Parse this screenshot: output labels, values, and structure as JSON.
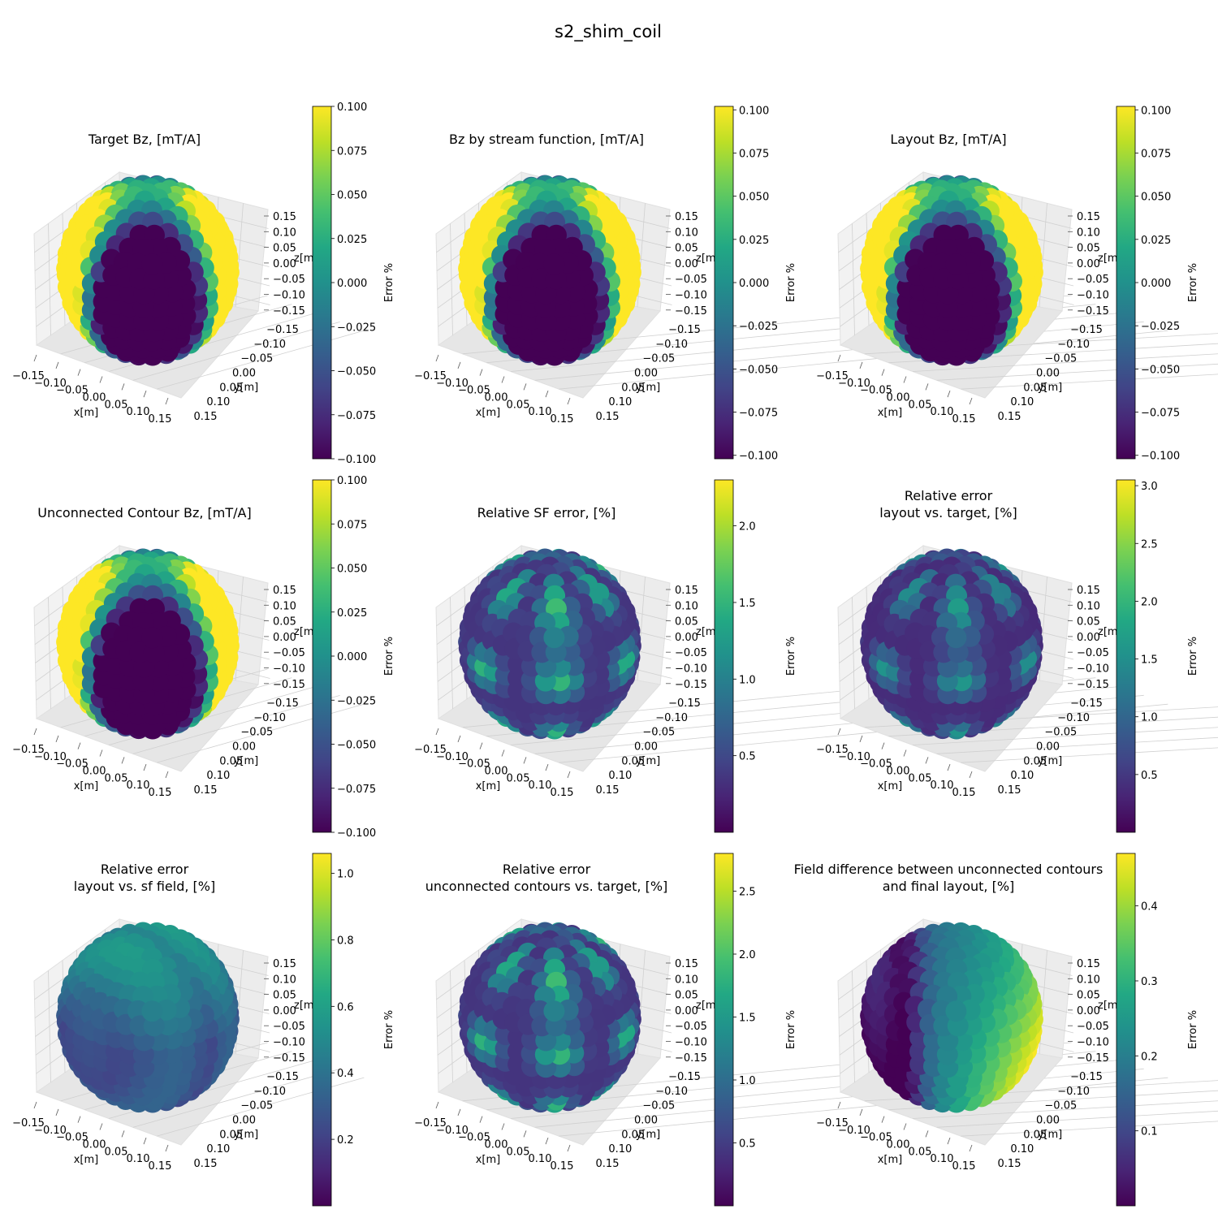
{
  "figure": {
    "suptitle": "s2_shim_coil"
  },
  "colors": {
    "colormap": "viridis",
    "pane": "#f2f2f2",
    "grid": "#d0d0d0"
  },
  "chart_data": [
    {
      "type": "scatter",
      "title_lines": [
        "Target Bz, [mT/A]"
      ],
      "xlabel": "x[m]",
      "ylabel": "y[m]",
      "zlabel": "z[m]",
      "xlim": [
        -0.15,
        0.15
      ],
      "ylim": [
        -0.15,
        0.15
      ],
      "zlim": [
        -0.15,
        0.15
      ],
      "x_ticks": [
        "−0.15",
        "−0.10",
        "−0.05",
        "0.00",
        "0.05",
        "0.10",
        "0.15"
      ],
      "y_ticks": [
        "−0.15",
        "−0.10",
        "−0.05",
        "0.00",
        "0.05",
        "0.10",
        "0.15"
      ],
      "z_ticks": [
        "0.15",
        "0.10",
        "0.05",
        "0.00",
        "−0.05",
        "−0.10",
        "−0.15"
      ],
      "colorbar": {
        "label": "Error %",
        "min": -0.1,
        "max": 0.1,
        "ticks": [
          "0.100",
          "0.075",
          "0.050",
          "0.025",
          "0.000",
          "−0.025",
          "−0.050",
          "−0.075",
          "−0.100"
        ],
        "tick_values": [
          0.1,
          0.075,
          0.05,
          0.025,
          0.0,
          -0.025,
          -0.05,
          -0.075,
          -0.1
        ]
      },
      "field": "bz"
    },
    {
      "type": "scatter",
      "title_lines": [
        "Bz by stream function, [mT/A]"
      ],
      "xlabel": "x[m]",
      "ylabel": "y[m]",
      "zlabel": "z[m]",
      "xlim": [
        -0.15,
        0.15
      ],
      "ylim": [
        -0.15,
        0.15
      ],
      "zlim": [
        -0.15,
        0.15
      ],
      "x_ticks": [
        "−0.15",
        "−0.10",
        "−0.05",
        "0.00",
        "0.05",
        "0.10",
        "0.15"
      ],
      "y_ticks": [
        "−0.15",
        "−0.10",
        "−0.05",
        "0.00",
        "0.05",
        "0.10",
        "0.15"
      ],
      "z_ticks": [
        "0.15",
        "0.10",
        "0.05",
        "0.00",
        "−0.05",
        "−0.10",
        "−0.15"
      ],
      "colorbar": {
        "label": "Error %",
        "min": -0.102,
        "max": 0.102,
        "ticks": [
          "0.100",
          "0.075",
          "0.050",
          "0.025",
          "0.000",
          "−0.025",
          "−0.050",
          "−0.075",
          "−0.100"
        ],
        "tick_values": [
          0.1,
          0.075,
          0.05,
          0.025,
          0.0,
          -0.025,
          -0.05,
          -0.075,
          -0.1
        ]
      },
      "field": "bz"
    },
    {
      "type": "scatter",
      "title_lines": [
        "Layout Bz, [mT/A]"
      ],
      "xlabel": "x[m]",
      "ylabel": "y[m]",
      "zlabel": "z[m]",
      "xlim": [
        -0.15,
        0.15
      ],
      "ylim": [
        -0.15,
        0.15
      ],
      "zlim": [
        -0.15,
        0.15
      ],
      "x_ticks": [
        "−0.15",
        "−0.10",
        "−0.05",
        "0.00",
        "0.05",
        "0.10",
        "0.15"
      ],
      "y_ticks": [
        "−0.15",
        "−0.10",
        "−0.05",
        "0.00",
        "0.05",
        "0.10",
        "0.15"
      ],
      "z_ticks": [
        "0.15",
        "0.10",
        "0.05",
        "0.00",
        "−0.05",
        "−0.10",
        "−0.15"
      ],
      "colorbar": {
        "label": "Error %",
        "min": -0.102,
        "max": 0.102,
        "ticks": [
          "0.100",
          "0.075",
          "0.050",
          "0.025",
          "0.000",
          "−0.025",
          "−0.050",
          "−0.075",
          "−0.100"
        ],
        "tick_values": [
          0.1,
          0.075,
          0.05,
          0.025,
          0.0,
          -0.025,
          -0.05,
          -0.075,
          -0.1
        ]
      },
      "field": "bz"
    },
    {
      "type": "scatter",
      "title_lines": [
        "Unconnected Contour Bz, [mT/A]"
      ],
      "xlabel": "x[m]",
      "ylabel": "y[m]",
      "zlabel": "z[m]",
      "xlim": [
        -0.15,
        0.15
      ],
      "ylim": [
        -0.15,
        0.15
      ],
      "zlim": [
        -0.15,
        0.15
      ],
      "x_ticks": [
        "−0.15",
        "−0.10",
        "−0.05",
        "0.00",
        "0.05",
        "0.10",
        "0.15"
      ],
      "y_ticks": [
        "−0.15",
        "−0.10",
        "−0.05",
        "0.00",
        "0.05",
        "0.10",
        "0.15"
      ],
      "z_ticks": [
        "0.15",
        "0.10",
        "0.05",
        "0.00",
        "−0.05",
        "−0.10",
        "−0.15"
      ],
      "colorbar": {
        "label": "Error %",
        "min": -0.1,
        "max": 0.1,
        "ticks": [
          "0.100",
          "0.075",
          "0.050",
          "0.025",
          "0.000",
          "−0.025",
          "−0.050",
          "−0.075",
          "−0.100"
        ],
        "tick_values": [
          0.1,
          0.075,
          0.05,
          0.025,
          0.0,
          -0.025,
          -0.05,
          -0.075,
          -0.1
        ]
      },
      "field": "bz"
    },
    {
      "type": "scatter",
      "title_lines": [
        "Relative SF error, [%]"
      ],
      "xlabel": "x[m]",
      "ylabel": "y[m]",
      "zlabel": "z[m]",
      "xlim": [
        -0.15,
        0.15
      ],
      "ylim": [
        -0.15,
        0.15
      ],
      "zlim": [
        -0.15,
        0.15
      ],
      "x_ticks": [
        "−0.15",
        "−0.10",
        "−0.05",
        "0.00",
        "0.05",
        "0.10",
        "0.15"
      ],
      "y_ticks": [
        "−0.15",
        "−0.10",
        "−0.05",
        "0.00",
        "0.05",
        "0.10",
        "0.15"
      ],
      "z_ticks": [
        "0.15",
        "0.10",
        "0.05",
        "0.00",
        "−0.05",
        "−0.10",
        "−0.15"
      ],
      "colorbar": {
        "label": "Error %",
        "min": 0.0,
        "max": 2.3,
        "ticks": [
          "2.0",
          "1.5",
          "1.0",
          "0.5"
        ],
        "tick_values": [
          2.0,
          1.5,
          1.0,
          0.5
        ]
      },
      "field": "err_pattern"
    },
    {
      "type": "scatter",
      "title_lines": [
        "Relative error",
        "layout vs. target, [%]"
      ],
      "xlabel": "x[m]",
      "ylabel": "y[m]",
      "zlabel": "z[m]",
      "xlim": [
        -0.15,
        0.15
      ],
      "ylim": [
        -0.15,
        0.15
      ],
      "zlim": [
        -0.15,
        0.15
      ],
      "x_ticks": [
        "−0.15",
        "−0.10",
        "−0.05",
        "0.00",
        "0.05",
        "0.10",
        "0.15"
      ],
      "y_ticks": [
        "−0.15",
        "−0.10",
        "−0.05",
        "0.00",
        "0.05",
        "0.10",
        "0.15"
      ],
      "z_ticks": [
        "0.15",
        "0.10",
        "0.05",
        "0.00",
        "−0.05",
        "−0.10",
        "−0.15"
      ],
      "colorbar": {
        "label": "Error %",
        "min": 0.0,
        "max": 3.05,
        "ticks": [
          "3.0",
          "2.5",
          "2.0",
          "1.5",
          "1.0",
          "0.5"
        ],
        "tick_values": [
          3.0,
          2.5,
          2.0,
          1.5,
          1.0,
          0.5
        ]
      },
      "field": "err_pattern_dim"
    },
    {
      "type": "scatter",
      "title_lines": [
        "Relative error",
        "layout vs. sf field, [%]"
      ],
      "xlabel": "x[m]",
      "ylabel": "y[m]",
      "zlabel": "z[m]",
      "xlim": [
        -0.15,
        0.15
      ],
      "ylim": [
        -0.15,
        0.15
      ],
      "zlim": [
        -0.15,
        0.15
      ],
      "x_ticks": [
        "−0.15",
        "−0.10",
        "−0.05",
        "0.00",
        "0.05",
        "0.10",
        "0.15"
      ],
      "y_ticks": [
        "−0.15",
        "−0.10",
        "−0.05",
        "0.00",
        "0.05",
        "0.10",
        "0.15"
      ],
      "z_ticks": [
        "0.15",
        "0.10",
        "0.05",
        "0.00",
        "−0.05",
        "−0.10",
        "−0.15"
      ],
      "colorbar": {
        "label": "Error %",
        "min": 0.0,
        "max": 1.06,
        "ticks": [
          "1.0",
          "0.8",
          "0.6",
          "0.4",
          "0.2"
        ],
        "tick_values": [
          1.0,
          0.8,
          0.6,
          0.4,
          0.2
        ]
      },
      "field": "err_low"
    },
    {
      "type": "scatter",
      "title_lines": [
        "Relative error",
        "unconnected contours vs. target, [%]"
      ],
      "xlabel": "x[m]",
      "ylabel": "y[m]",
      "zlabel": "z[m]",
      "xlim": [
        -0.15,
        0.15
      ],
      "ylim": [
        -0.15,
        0.15
      ],
      "zlim": [
        -0.15,
        0.15
      ],
      "x_ticks": [
        "−0.15",
        "−0.10",
        "−0.05",
        "0.00",
        "0.05",
        "0.10",
        "0.15"
      ],
      "y_ticks": [
        "−0.15",
        "−0.10",
        "−0.05",
        "0.00",
        "0.05",
        "0.10",
        "0.15"
      ],
      "z_ticks": [
        "0.15",
        "0.10",
        "0.05",
        "0.00",
        "−0.05",
        "−0.10",
        "−0.15"
      ],
      "colorbar": {
        "label": "Error %",
        "min": 0.0,
        "max": 2.8,
        "ticks": [
          "2.5",
          "2.0",
          "1.5",
          "1.0",
          "0.5"
        ],
        "tick_values": [
          2.5,
          2.0,
          1.5,
          1.0,
          0.5
        ]
      },
      "field": "err_pattern"
    },
    {
      "type": "scatter",
      "title_lines": [
        "Field difference between unconnected contours",
        "and final layout, [%]"
      ],
      "xlabel": "x[m]",
      "ylabel": "y[m]",
      "zlabel": "z[m]",
      "xlim": [
        -0.15,
        0.15
      ],
      "ylim": [
        -0.15,
        0.15
      ],
      "zlim": [
        -0.15,
        0.15
      ],
      "x_ticks": [
        "−0.15",
        "−0.10",
        "−0.05",
        "0.00",
        "0.05",
        "0.10",
        "0.15"
      ],
      "y_ticks": [
        "−0.15",
        "−0.10",
        "−0.05",
        "0.00",
        "0.05",
        "0.10",
        "0.15"
      ],
      "z_ticks": [
        "0.15",
        "0.10",
        "0.05",
        "0.00",
        "−0.05",
        "−0.10",
        "−0.15"
      ],
      "colorbar": {
        "label": "Error %",
        "min": 0.0,
        "max": 0.47,
        "ticks": [
          "0.4",
          "0.3",
          "0.2",
          "0.1"
        ],
        "tick_values": [
          0.4,
          0.3,
          0.2,
          0.1
        ]
      },
      "field": "diff"
    }
  ]
}
